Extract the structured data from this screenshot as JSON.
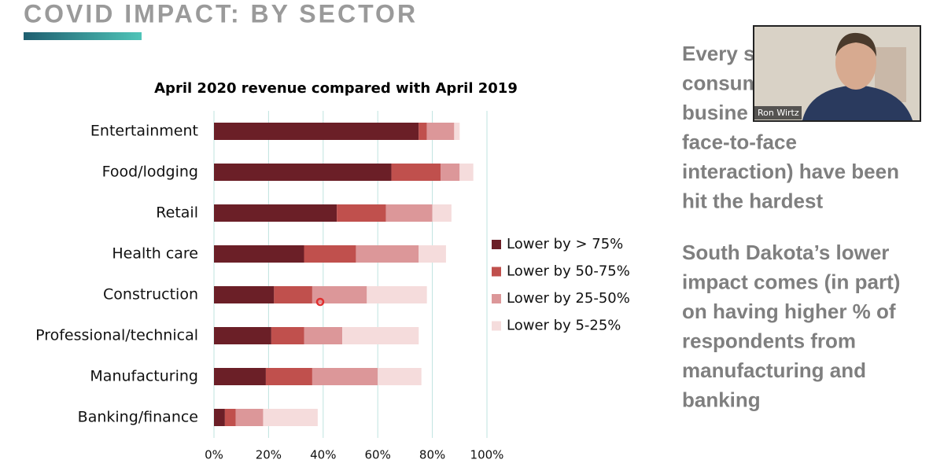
{
  "slide": {
    "title": "COVID IMPACT: BY SECTOR",
    "paragraphs": [
      {
        "lines": [
          "Every s",
          "consum",
          "busine",
          "face-to-face",
          "interaction) have been",
          "hit the hardest"
        ]
      },
      {
        "lines": [
          "South Dakota’s lower",
          "impact comes (in part)",
          "on having higher % of",
          "respondents from",
          "manufacturing and",
          "banking"
        ]
      }
    ]
  },
  "webcam": {
    "name": "Ron Wirtz"
  },
  "chart_data": {
    "type": "bar",
    "orientation": "horizontal",
    "stacked": true,
    "title": "April 2020 revenue compared with April 2019",
    "categories": [
      "Entertainment",
      "Food/lodging",
      "Retail",
      "Health care",
      "Construction",
      "Professional/technical",
      "Manufacturing",
      "Banking/finance"
    ],
    "series": [
      {
        "name": "Lower by > 75%",
        "color": "#6b1f27",
        "values": [
          75,
          65,
          45,
          33,
          22,
          21,
          19,
          4
        ]
      },
      {
        "name": "Lower by 50-75%",
        "color": "#c0504d",
        "values": [
          3,
          18,
          18,
          19,
          14,
          12,
          17,
          4
        ]
      },
      {
        "name": "Lower by 25-50%",
        "color": "#dc9799",
        "values": [
          10,
          7,
          17,
          23,
          20,
          14,
          24,
          10
        ]
      },
      {
        "name": "Lower by 5-25%",
        "color": "#f5dcdc",
        "values": [
          2,
          5,
          7,
          10,
          22,
          28,
          16,
          20
        ]
      }
    ],
    "xlim": [
      0,
      100
    ],
    "xticks": [
      {
        "value": 0,
        "label": "0%"
      },
      {
        "value": 20,
        "label": "20%"
      },
      {
        "value": 40,
        "label": "40%"
      },
      {
        "value": 60,
        "label": "60%"
      },
      {
        "value": 80,
        "label": "80%"
      },
      {
        "value": 100,
        "label": "100%"
      }
    ],
    "grid": true,
    "legend": "right"
  }
}
